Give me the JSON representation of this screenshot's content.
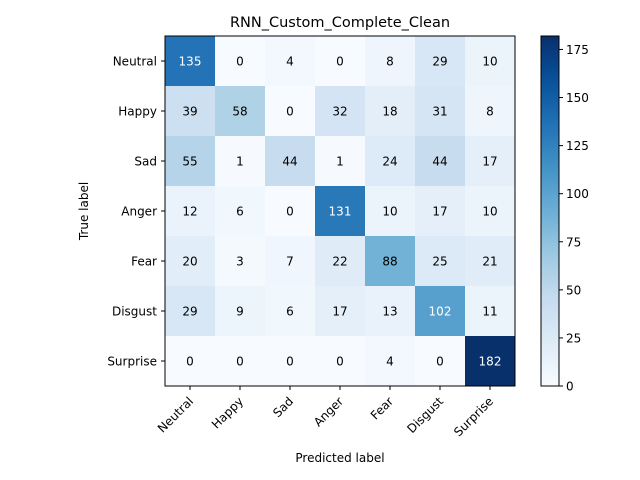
{
  "chart_data": {
    "type": "heatmap",
    "title": "RNN_Custom_Complete_Clean",
    "xlabel": "Predicted label",
    "ylabel": "True label",
    "x_categories": [
      "Neutral",
      "Happy",
      "Sad",
      "Anger",
      "Fear",
      "Disgust",
      "Surprise"
    ],
    "y_categories": [
      "Neutral",
      "Happy",
      "Sad",
      "Anger",
      "Fear",
      "Disgust",
      "Surprise"
    ],
    "values": [
      [
        135,
        0,
        4,
        0,
        8,
        29,
        10
      ],
      [
        39,
        58,
        0,
        32,
        18,
        31,
        8
      ],
      [
        55,
        1,
        44,
        1,
        24,
        44,
        17
      ],
      [
        12,
        6,
        0,
        131,
        10,
        17,
        10
      ],
      [
        20,
        3,
        7,
        22,
        88,
        25,
        21
      ],
      [
        29,
        9,
        6,
        17,
        13,
        102,
        11
      ],
      [
        0,
        0,
        0,
        0,
        4,
        0,
        182
      ]
    ],
    "colormap": "Blues",
    "color_range": [
      0,
      182
    ],
    "colorbar_ticks": [
      0,
      25,
      50,
      75,
      100,
      125,
      150,
      175
    ],
    "x_tick_rotation": 45,
    "grid": false
  }
}
